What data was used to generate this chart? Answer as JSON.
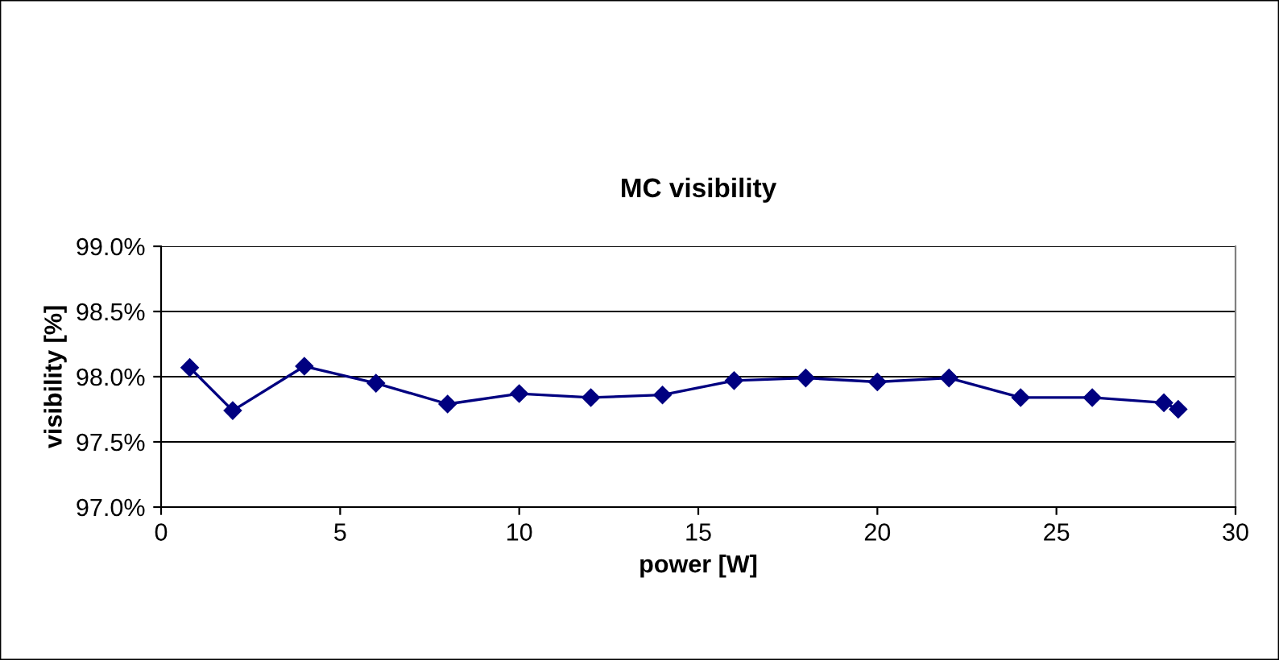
{
  "chart_data": {
    "type": "line",
    "title": "MC visibility",
    "xlabel": "power [W]",
    "ylabel": "visibility [%]",
    "x": [
      0.8,
      2,
      4,
      6,
      8,
      10,
      12,
      14,
      16,
      18,
      20,
      22,
      24,
      26,
      28,
      28.4
    ],
    "series": [
      {
        "color": "#000080",
        "values": [
          98.07,
          97.74,
          98.08,
          97.95,
          97.79,
          97.87,
          97.84,
          97.86,
          97.97,
          97.99,
          97.96,
          97.99,
          97.84,
          97.84,
          97.8,
          97.75
        ]
      }
    ],
    "xlim": [
      0,
      30
    ],
    "xticks": [
      0,
      5,
      10,
      15,
      20,
      25,
      30
    ],
    "ylim": [
      97.0,
      99.0
    ],
    "yticks": [
      {
        "value": 97.0,
        "label": "97.0%"
      },
      {
        "value": 97.5,
        "label": "97.5%"
      },
      {
        "value": 98.0,
        "label": "98.0%"
      },
      {
        "value": 98.5,
        "label": "98.5%"
      },
      {
        "value": 99.0,
        "label": "99.0%"
      }
    ],
    "grid": "y",
    "marker": "diamond",
    "line_style": "solid",
    "legend": false
  }
}
